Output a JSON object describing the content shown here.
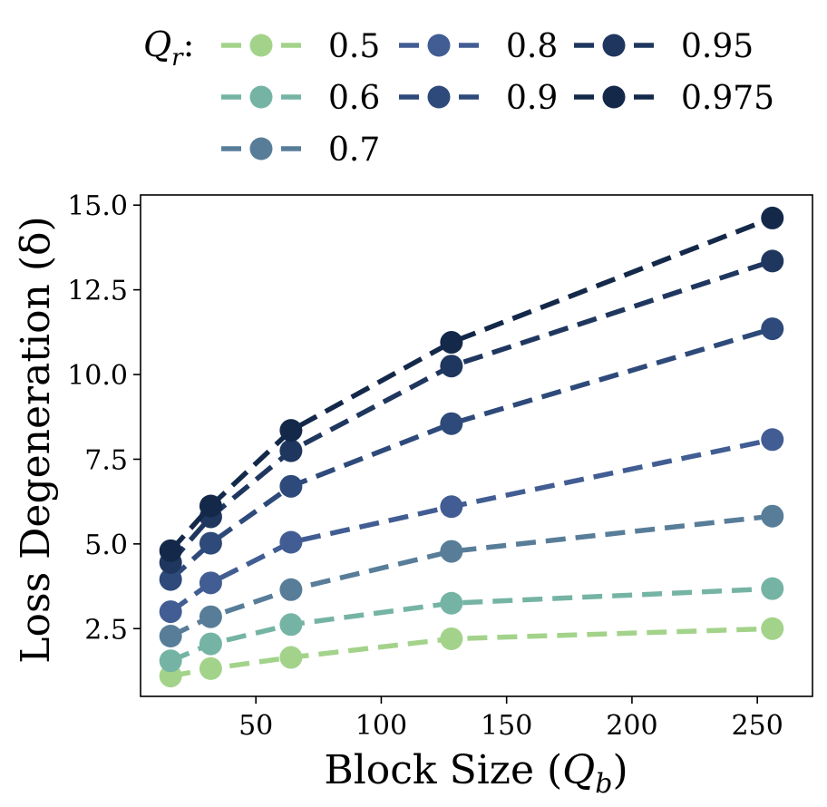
{
  "chart_data": {
    "type": "line",
    "legend": {
      "title": "Q_r:",
      "title_main": "Q",
      "title_sub": "r",
      "title_suffix": ":",
      "placement": "top"
    },
    "xlabel": "Block Size (Q_b)",
    "xlabel_main": "Block Size (",
    "xlabel_var": "Q",
    "xlabel_sub": "b",
    "xlabel_close": ")",
    "ylabel": "Loss Degeneration (δ)",
    "x": [
      16,
      32,
      64,
      128,
      256
    ],
    "xticks": [
      50,
      100,
      150,
      200,
      250
    ],
    "xtick_labels": [
      "50",
      "100",
      "150",
      "200",
      "250"
    ],
    "yticks": [
      2.5,
      5.0,
      7.5,
      10.0,
      12.5,
      15.0
    ],
    "ytick_labels": [
      "2.5",
      "5.0",
      "7.5",
      "10.0",
      "12.5",
      "15.0"
    ],
    "xlim": [
      4,
      272
    ],
    "ylim": [
      0.5,
      15.3
    ],
    "grid": false,
    "series": [
      {
        "name": "0.5",
        "color": "#a3d38a",
        "values": [
          1.1,
          1.32,
          1.65,
          2.2,
          2.5
        ]
      },
      {
        "name": "0.6",
        "color": "#75b4a4",
        "values": [
          1.55,
          2.05,
          2.62,
          3.25,
          3.68
        ]
      },
      {
        "name": "0.7",
        "color": "#587d99",
        "values": [
          2.28,
          2.85,
          3.65,
          4.78,
          5.82
        ]
      },
      {
        "name": "0.8",
        "color": "#425d93",
        "values": [
          3.0,
          3.85,
          5.05,
          6.1,
          8.08
        ]
      },
      {
        "name": "0.9",
        "color": "#2e4a7a",
        "values": [
          3.95,
          5.02,
          6.7,
          8.55,
          11.35
        ]
      },
      {
        "name": "0.95",
        "color": "#1f375f",
        "values": [
          4.45,
          5.8,
          7.75,
          10.25,
          13.35
        ]
      },
      {
        "name": "0.975",
        "color": "#14294a",
        "values": [
          4.8,
          6.12,
          8.35,
          10.95,
          14.62
        ]
      }
    ]
  }
}
